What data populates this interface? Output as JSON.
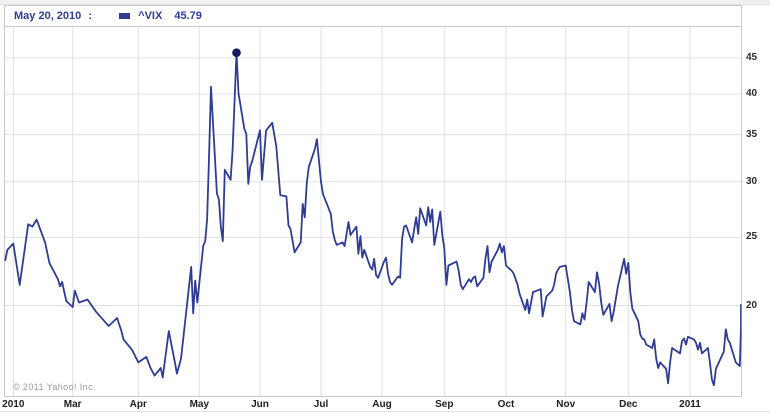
{
  "header": {
    "date_label": "May 20, 2010",
    "separator": ":",
    "legend_symbol": "^VIX",
    "legend_value": "45.79",
    "accent_color": "#2f3c96"
  },
  "watermark": "© 2011 Yahoo! Inc.",
  "y_axis": {
    "scale": "log",
    "ticks": [
      45,
      40,
      35,
      30,
      25,
      20
    ]
  },
  "x_axis": {
    "labels": [
      {
        "text": "2010",
        "anchor": "2010-02"
      },
      {
        "text": "Mar",
        "anchor": "2010-03"
      },
      {
        "text": "Apr",
        "anchor": "2010-04"
      },
      {
        "text": "May",
        "anchor": "2010-05"
      },
      {
        "text": "Jun",
        "anchor": "2010-06"
      },
      {
        "text": "Jul",
        "anchor": "2010-07"
      },
      {
        "text": "Aug",
        "anchor": "2010-08"
      },
      {
        "text": "Sep",
        "anchor": "2010-09"
      },
      {
        "text": "Oct",
        "anchor": "2010-10"
      },
      {
        "text": "Nov",
        "anchor": "2010-11"
      },
      {
        "text": "Dec",
        "anchor": "2010-12"
      },
      {
        "text": "2011",
        "anchor": "2011-01"
      }
    ]
  },
  "chart_data": {
    "type": "line",
    "symbol": "^VIX",
    "title": "CBOE Volatility Index (^VIX) — 1 year daily closes",
    "y_scale": "log",
    "ylim": [
      15,
      47
    ],
    "date_range": [
      "2010-01-28",
      "2011-01-28"
    ],
    "line_color": "#2f3c96",
    "marker_color": "#121b5e",
    "highlight_point": {
      "date": "2010-05-20",
      "value": 45.79
    },
    "grid": true,
    "legend_position": "top-left",
    "series": [
      [
        "2010-01-28",
        23.2
      ],
      [
        "2010-01-29",
        24.0
      ],
      [
        "2010-02-01",
        24.5
      ],
      [
        "2010-02-04",
        21.4
      ],
      [
        "2010-02-08",
        26.1
      ],
      [
        "2010-02-10",
        25.9
      ],
      [
        "2010-02-12",
        26.5
      ],
      [
        "2010-02-16",
        24.6
      ],
      [
        "2010-02-18",
        23.0
      ],
      [
        "2010-02-22",
        21.8
      ],
      [
        "2010-02-23",
        21.3
      ],
      [
        "2010-02-24",
        21.6
      ],
      [
        "2010-02-26",
        20.3
      ],
      [
        "2010-03-01",
        19.9
      ],
      [
        "2010-03-02",
        21.0
      ],
      [
        "2010-03-04",
        20.2
      ],
      [
        "2010-03-08",
        20.4
      ],
      [
        "2010-03-10",
        20.0
      ],
      [
        "2010-03-12",
        19.6
      ],
      [
        "2010-03-16",
        19.0
      ],
      [
        "2010-03-18",
        18.7
      ],
      [
        "2010-03-22",
        19.2
      ],
      [
        "2010-03-24",
        18.4
      ],
      [
        "2010-03-25",
        17.9
      ],
      [
        "2010-03-29",
        17.3
      ],
      [
        "2010-04-01",
        16.6
      ],
      [
        "2010-04-05",
        16.9
      ],
      [
        "2010-04-07",
        16.3
      ],
      [
        "2010-04-09",
        15.9
      ],
      [
        "2010-04-12",
        16.3
      ],
      [
        "2010-04-13",
        15.8
      ],
      [
        "2010-04-16",
        18.4
      ],
      [
        "2010-04-19",
        16.6
      ],
      [
        "2010-04-20",
        16.0
      ],
      [
        "2010-04-22",
        16.8
      ],
      [
        "2010-04-27",
        22.7
      ],
      [
        "2010-04-28",
        19.5
      ],
      [
        "2010-04-29",
        21.7
      ],
      [
        "2010-04-30",
        20.2
      ],
      [
        "2010-05-03",
        24.3
      ],
      [
        "2010-05-04",
        24.7
      ],
      [
        "2010-05-05",
        26.5
      ],
      [
        "2010-05-06",
        32.8
      ],
      [
        "2010-05-07",
        40.95
      ],
      [
        "2010-05-10",
        28.9
      ],
      [
        "2010-05-11",
        28.3
      ],
      [
        "2010-05-12",
        25.9
      ],
      [
        "2010-05-13",
        24.7
      ],
      [
        "2010-05-14",
        31.2
      ],
      [
        "2010-05-17",
        30.2
      ],
      [
        "2010-05-18",
        33.3
      ],
      [
        "2010-05-20",
        45.79
      ],
      [
        "2010-05-21",
        40.1
      ],
      [
        "2010-05-24",
        35.7
      ],
      [
        "2010-05-25",
        35.1
      ],
      [
        "2010-05-26",
        29.8
      ],
      [
        "2010-05-27",
        31.5
      ],
      [
        "2010-05-28",
        32.1
      ],
      [
        "2010-06-01",
        35.5
      ],
      [
        "2010-06-02",
        30.2
      ],
      [
        "2010-06-04",
        35.5
      ],
      [
        "2010-06-07",
        36.4
      ],
      [
        "2010-06-09",
        33.7
      ],
      [
        "2010-06-11",
        28.7
      ],
      [
        "2010-06-14",
        28.6
      ],
      [
        "2010-06-15",
        26.0
      ],
      [
        "2010-06-16",
        25.7
      ],
      [
        "2010-06-18",
        23.8
      ],
      [
        "2010-06-21",
        24.6
      ],
      [
        "2010-06-22",
        27.9
      ],
      [
        "2010-06-23",
        26.7
      ],
      [
        "2010-06-24",
        29.9
      ],
      [
        "2010-06-25",
        31.5
      ],
      [
        "2010-06-28",
        33.4
      ],
      [
        "2010-06-29",
        34.5
      ],
      [
        "2010-07-01",
        30.0
      ],
      [
        "2010-07-02",
        28.8
      ],
      [
        "2010-07-06",
        27.0
      ],
      [
        "2010-07-07",
        25.5
      ],
      [
        "2010-07-08",
        24.8
      ],
      [
        "2010-07-09",
        24.4
      ],
      [
        "2010-07-12",
        24.6
      ],
      [
        "2010-07-13",
        24.3
      ],
      [
        "2010-07-15",
        26.3
      ],
      [
        "2010-07-16",
        25.2
      ],
      [
        "2010-07-19",
        25.9
      ],
      [
        "2010-07-20",
        23.7
      ],
      [
        "2010-07-21",
        25.1
      ],
      [
        "2010-07-22",
        23.4
      ],
      [
        "2010-07-23",
        24.0
      ],
      [
        "2010-07-26",
        22.7
      ],
      [
        "2010-07-27",
        22.5
      ],
      [
        "2010-07-28",
        23.3
      ],
      [
        "2010-07-29",
        22.1
      ],
      [
        "2010-07-30",
        21.9
      ],
      [
        "2010-08-02",
        23.1
      ],
      [
        "2010-08-03",
        23.4
      ],
      [
        "2010-08-04",
        22.2
      ],
      [
        "2010-08-05",
        21.6
      ],
      [
        "2010-08-06",
        21.4
      ],
      [
        "2010-08-09",
        22.0
      ],
      [
        "2010-08-10",
        21.9
      ],
      [
        "2010-08-11",
        24.9
      ],
      [
        "2010-08-12",
        25.9
      ],
      [
        "2010-08-13",
        26.0
      ],
      [
        "2010-08-16",
        24.6
      ],
      [
        "2010-08-17",
        25.7
      ],
      [
        "2010-08-18",
        26.7
      ],
      [
        "2010-08-19",
        25.3
      ],
      [
        "2010-08-20",
        27.5
      ],
      [
        "2010-08-23",
        26.0
      ],
      [
        "2010-08-24",
        27.6
      ],
      [
        "2010-08-25",
        26.3
      ],
      [
        "2010-08-26",
        27.4
      ],
      [
        "2010-08-27",
        24.4
      ],
      [
        "2010-08-30",
        27.2
      ],
      [
        "2010-08-31",
        25.2
      ],
      [
        "2010-09-01",
        24.1
      ],
      [
        "2010-09-02",
        21.4
      ],
      [
        "2010-09-03",
        22.8
      ],
      [
        "2010-09-07",
        23.1
      ],
      [
        "2010-09-08",
        22.4
      ],
      [
        "2010-09-09",
        21.4
      ],
      [
        "2010-09-10",
        21.1
      ],
      [
        "2010-09-13",
        21.8
      ],
      [
        "2010-09-14",
        21.6
      ],
      [
        "2010-09-15",
        21.9
      ],
      [
        "2010-09-16",
        22.0
      ],
      [
        "2010-09-17",
        21.3
      ],
      [
        "2010-09-20",
        21.9
      ],
      [
        "2010-09-21",
        23.3
      ],
      [
        "2010-09-22",
        24.3
      ],
      [
        "2010-09-23",
        22.3
      ],
      [
        "2010-09-24",
        23.1
      ],
      [
        "2010-09-27",
        24.0
      ],
      [
        "2010-09-28",
        24.5
      ],
      [
        "2010-09-29",
        23.8
      ],
      [
        "2010-09-30",
        24.3
      ],
      [
        "2010-10-01",
        22.8
      ],
      [
        "2010-10-04",
        22.4
      ],
      [
        "2010-10-05",
        22.2
      ],
      [
        "2010-10-07",
        21.4
      ],
      [
        "2010-10-08",
        20.8
      ],
      [
        "2010-10-11",
        19.7
      ],
      [
        "2010-10-12",
        20.4
      ],
      [
        "2010-10-13",
        19.5
      ],
      [
        "2010-10-15",
        20.9
      ],
      [
        "2010-10-19",
        21.1
      ],
      [
        "2010-10-20",
        19.3
      ],
      [
        "2010-10-22",
        20.6
      ],
      [
        "2010-10-25",
        21.0
      ],
      [
        "2010-10-26",
        21.4
      ],
      [
        "2010-10-27",
        22.2
      ],
      [
        "2010-10-28",
        22.5
      ],
      [
        "2010-10-29",
        22.7
      ],
      [
        "2010-11-01",
        22.8
      ],
      [
        "2010-11-03",
        20.9
      ],
      [
        "2010-11-04",
        19.7
      ],
      [
        "2010-11-05",
        19.0
      ],
      [
        "2010-11-08",
        18.8
      ],
      [
        "2010-11-09",
        19.5
      ],
      [
        "2010-11-10",
        19.1
      ],
      [
        "2010-11-11",
        20.2
      ],
      [
        "2010-11-12",
        21.6
      ],
      [
        "2010-11-15",
        20.9
      ],
      [
        "2010-11-16",
        22.3
      ],
      [
        "2010-11-17",
        21.5
      ],
      [
        "2010-11-18",
        20.2
      ],
      [
        "2010-11-19",
        19.4
      ],
      [
        "2010-11-22",
        20.1
      ],
      [
        "2010-11-23",
        19.0
      ],
      [
        "2010-11-24",
        19.6
      ],
      [
        "2010-11-26",
        21.3
      ],
      [
        "2010-11-29",
        23.3
      ],
      [
        "2010-11-30",
        22.2
      ],
      [
        "2010-12-01",
        23.0
      ],
      [
        "2010-12-02",
        20.9
      ],
      [
        "2010-12-03",
        19.8
      ],
      [
        "2010-12-06",
        19.0
      ],
      [
        "2010-12-07",
        18.2
      ],
      [
        "2010-12-08",
        17.95
      ],
      [
        "2010-12-09",
        17.9
      ],
      [
        "2010-12-10",
        17.6
      ],
      [
        "2010-12-13",
        17.4
      ],
      [
        "2010-12-14",
        17.9
      ],
      [
        "2010-12-15",
        16.8
      ],
      [
        "2010-12-16",
        16.3
      ],
      [
        "2010-12-17",
        16.6
      ],
      [
        "2010-12-20",
        16.25
      ],
      [
        "2010-12-21",
        15.5
      ],
      [
        "2010-12-22",
        16.6
      ],
      [
        "2010-12-23",
        17.4
      ],
      [
        "2010-12-27",
        17.1
      ],
      [
        "2010-12-28",
        17.8
      ],
      [
        "2010-12-29",
        17.95
      ],
      [
        "2010-12-30",
        17.6
      ],
      [
        "2010-12-31",
        18.05
      ],
      [
        "2011-01-03",
        17.9
      ],
      [
        "2011-01-04",
        17.7
      ],
      [
        "2011-01-05",
        17.3
      ],
      [
        "2011-01-06",
        17.7
      ],
      [
        "2011-01-07",
        17.1
      ],
      [
        "2011-01-10",
        17.4
      ],
      [
        "2011-01-11",
        16.6
      ],
      [
        "2011-01-12",
        15.7
      ],
      [
        "2011-01-13",
        15.4
      ],
      [
        "2011-01-14",
        16.25
      ],
      [
        "2011-01-18",
        17.2
      ],
      [
        "2011-01-19",
        18.5
      ],
      [
        "2011-01-20",
        17.9
      ],
      [
        "2011-01-21",
        17.7
      ],
      [
        "2011-01-24",
        16.6
      ],
      [
        "2011-01-25",
        16.5
      ],
      [
        "2011-01-26",
        16.4
      ],
      [
        "2011-01-27",
        18.6
      ],
      [
        "2011-01-28",
        20.04
      ]
    ]
  }
}
